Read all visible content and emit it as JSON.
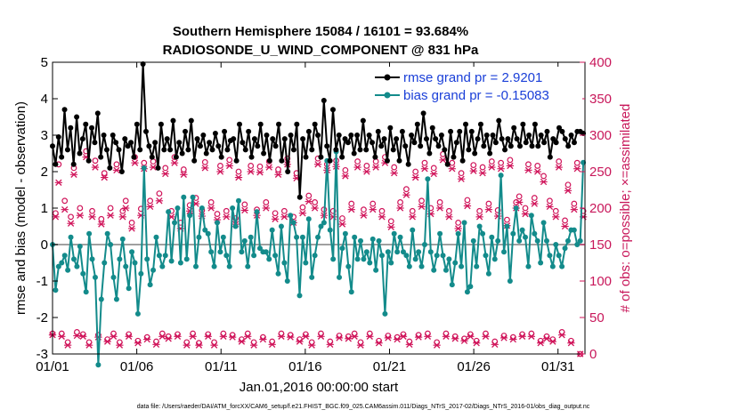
{
  "chart_data": {
    "type": "line",
    "title": "Southern Hemisphere 15084 / 16101 = 93.684%",
    "subtitle": "RADIOSONDE_U_WIND_COMPONENT @ 831 hPa",
    "xlabel": "Jan.01,2016 00:00:00 start",
    "ylabel": "rmse and bias (model - observation)",
    "y2label": "# of obs: o=possible; ×=assimilated",
    "footnote": "data file: /Users/raeder/DAI/ATM_forcXX/CAM6_setup/f.e21.FHIST_BGC.f09_025.CAM6assim.011/Diags_NTrS_2017-02/Diags_NTrS_2016-01/obs_diag_output.nc",
    "xlim": [
      0,
      31.6
    ],
    "ylim": [
      -3,
      5
    ],
    "y2lim": [
      0,
      400
    ],
    "x_ticks": [
      0,
      5,
      10,
      15,
      20,
      25,
      30
    ],
    "x_tick_labels": [
      "01/01",
      "01/06",
      "01/11",
      "01/16",
      "01/21",
      "01/26",
      "01/31"
    ],
    "y_ticks": [
      -3,
      -2,
      -1,
      0,
      1,
      2,
      3,
      4,
      5
    ],
    "y_tick_labels": [
      "-3",
      "-2",
      "-1",
      "0",
      "1",
      "2",
      "3",
      "4",
      "5"
    ],
    "y2_ticks": [
      0,
      50,
      100,
      150,
      200,
      250,
      300,
      350,
      400
    ],
    "y2_tick_labels": [
      "0",
      "50",
      "100",
      "150",
      "200",
      "250",
      "300",
      "350",
      "400"
    ],
    "legend": {
      "position": "top-right",
      "entries": [
        "rmse grand pr = 2.9201",
        "bias grand pr = -0.15083"
      ]
    },
    "colors": {
      "rmse": "#000000",
      "bias": "#138b8b",
      "obs": "#d0145a",
      "zero_line": "#a0a0a0",
      "legend_text": "#1a3fd8"
    },
    "series": [
      {
        "name": "rmse",
        "values": [
          2.7,
          2.2,
          2.95,
          2.4,
          3.7,
          2.6,
          3.2,
          2.2,
          3.5,
          2.5,
          2.9,
          3.3,
          2.3,
          3.2,
          2.8,
          3.6,
          2.4,
          3.0,
          2.6,
          2.1,
          3.0,
          2.8,
          2.6,
          2.0,
          2.9,
          2.7,
          2.8,
          2.4,
          3.3,
          2.6,
          4.95,
          3.1,
          2.7,
          2.4,
          2.8,
          2.1,
          3.3,
          2.6,
          2.9,
          2.6,
          3.4,
          2.4,
          2.8,
          2.5,
          3.1,
          2.6,
          3.4,
          2.3,
          2.9,
          2.7,
          3.0,
          2.5,
          2.8,
          2.6,
          3.05,
          2.7,
          2.4,
          3.1,
          2.6,
          2.85,
          2.9,
          2.3,
          3.3,
          2.8,
          2.6,
          3.1,
          2.4,
          2.9,
          2.7,
          3.3,
          2.5,
          3.0,
          2.3,
          2.9,
          2.7,
          3.3,
          2.3,
          2.9,
          2.0,
          3.0,
          2.6,
          3.3,
          1.3,
          2.9,
          2.4,
          3.1,
          2.6,
          3.3,
          3.0,
          2.4,
          3.95,
          2.7,
          2.3,
          3.7,
          2.6,
          3.0,
          2.4,
          2.9,
          2.8,
          3.0,
          2.5,
          3.0,
          2.6,
          3.4,
          2.6,
          3.0,
          2.8,
          2.4,
          3.1,
          2.7,
          2.9,
          2.3,
          3.2,
          2.6,
          2.9,
          2.3,
          3.1,
          2.7,
          2.2,
          3.0,
          2.8,
          3.3,
          2.7,
          3.6,
          2.9,
          2.5,
          3.2,
          2.9,
          2.7,
          3.0,
          2.6,
          2.2,
          3.1,
          2.4,
          2.8,
          3.1,
          2.3,
          3.3,
          2.6,
          3.1,
          2.5,
          2.9,
          3.3,
          2.7,
          3.0,
          2.5,
          3.0,
          2.8,
          3.4,
          2.9,
          2.6,
          2.9,
          2.7,
          3.2,
          2.9,
          2.7,
          3.3,
          2.8,
          3.0,
          2.7,
          3.3,
          2.7,
          3.0,
          2.8,
          3.1,
          2.4,
          2.9,
          2.8,
          3.2,
          3.1,
          2.9,
          2.7,
          3.0,
          2.8,
          3.1,
          3.1,
          3.05
        ]
      },
      {
        "name": "bias",
        "values": [
          0.0,
          -1.25,
          -0.6,
          -0.5,
          -0.3,
          -0.7,
          0.2,
          -0.4,
          -0.6,
          -0.05,
          -0.8,
          -1.3,
          0.3,
          -0.4,
          -0.9,
          -3.3,
          -1.5,
          -0.5,
          0.3,
          0.0,
          -0.9,
          -1.5,
          -0.4,
          0.15,
          -0.6,
          -1.2,
          -0.2,
          -0.5,
          -1.9,
          -0.8,
          2.1,
          -0.4,
          -1.1,
          -0.7,
          0.2,
          -0.3,
          -0.6,
          -0.3,
          0.9,
          -0.45,
          0.6,
          1.0,
          -0.5,
          1.3,
          -0.4,
          0.8,
          1.3,
          -0.6,
          0.2,
          1.0,
          0.4,
          0.3,
          -0.2,
          -0.6,
          0.6,
          -0.2,
          0.2,
          -0.3,
          -0.6,
          1.0,
          0.5,
          1.2,
          -0.2,
          0.1,
          -0.6,
          0.2,
          -0.3,
          0.9,
          -0.1,
          -0.2,
          -0.2,
          -0.4,
          0.4,
          -0.3,
          -0.8,
          0.5,
          -0.5,
          -1.0,
          0.8,
          0.6,
          0.2,
          -1.4,
          0.2,
          -0.5,
          0.7,
          -0.9,
          -0.3,
          0.2,
          0.5,
          0.6,
          2.3,
          0.4,
          -0.4,
          2.55,
          -0.9,
          -0.1,
          0.3,
          -0.6,
          -1.3,
          0.2,
          -0.4,
          0.1,
          -0.4,
          -0.2,
          -0.5,
          0.15,
          -0.7,
          0.1,
          -0.3,
          -1.9,
          -0.2,
          -0.5,
          0.3,
          -0.2,
          0.2,
          -0.2,
          -0.3,
          -0.6,
          0.4,
          -0.4,
          -0.2,
          -0.6,
          0.0,
          1.8,
          -0.2,
          -0.7,
          -0.3,
          0.3,
          -0.3,
          -0.7,
          -0.4,
          -1.1,
          -0.5,
          0.3,
          -0.6,
          0.6,
          -1.3,
          -1.15,
          0.1,
          -0.6,
          0.5,
          0.3,
          -0.3,
          -0.8,
          0.2,
          -0.4,
          0.1,
          1.9,
          -0.2,
          0.5,
          -1.0,
          0.3,
          1.0,
          0.1,
          0.4,
          0.2,
          -0.6,
          0.8,
          0.3,
          0.1,
          -0.5,
          0.6,
          0.1,
          -0.3,
          -0.6,
          0.0,
          -0.3,
          -0.6,
          -0.1,
          0.1,
          0.4,
          0.4,
          0.0,
          0.1,
          2.25
        ]
      }
    ],
    "obs_possible": {
      "marker": "o",
      "values": [
        28,
        193,
        260,
        28,
        210,
        16,
        188,
        255,
        30,
        200,
        27,
        278,
        16,
        196,
        265,
        26,
        185,
        248,
        20,
        200,
        28,
        260,
        16,
        196,
        210,
        27,
        180,
        270,
        18,
        199,
        262,
        23,
        210,
        264,
        17,
        220,
        28,
        255,
        24,
        196,
        270,
        27,
        180,
        253,
        16,
        204,
        28,
        214,
        15,
        197,
        263,
        27,
        208,
        16,
        192,
        258,
        28,
        196,
        266,
        26,
        186,
        250,
        20,
        205,
        28,
        258,
        16,
        198,
        257,
        23,
        208,
        264,
        17,
        193,
        253,
        28,
        196,
        268,
        26,
        188,
        248,
        20,
        201,
        27,
        217,
        16,
        208,
        268,
        28,
        198,
        260,
        17,
        196,
        265,
        25,
        186,
        252,
        24,
        206,
        28,
        264,
        16,
        198,
        258,
        28,
        206,
        264,
        18,
        196,
        270,
        25,
        182,
        256,
        23,
        208,
        27,
        226,
        17,
        196,
        250,
        26,
        210,
        262,
        28,
        200,
        255,
        16,
        208,
        274,
        28,
        196,
        262,
        24,
        180,
        248,
        21,
        211,
        27,
        259,
        18,
        196,
        256,
        28,
        206,
        264,
        17,
        197,
        262,
        25,
        184,
        266,
        23,
        208,
        216,
        27,
        200,
        260,
        28,
        214,
        258,
        18,
        244,
        24,
        210,
        20,
        196,
        264,
        30,
        183,
        232,
        18,
        206,
        262,
        0,
        196
      ]
    },
    "obs_assimilated": {
      "marker": "x",
      "values": [
        26,
        188,
        235,
        24,
        198,
        12,
        179,
        246,
        25,
        190,
        24,
        270,
        12,
        188,
        256,
        23,
        178,
        242,
        17,
        190,
        24,
        252,
        12,
        188,
        200,
        24,
        172,
        262,
        15,
        190,
        254,
        20,
        202,
        256,
        13,
        210,
        24,
        247,
        21,
        188,
        262,
        24,
        172,
        246,
        12,
        196,
        24,
        206,
        12,
        189,
        255,
        24,
        200,
        12,
        184,
        250,
        24,
        188,
        258,
        23,
        178,
        242,
        17,
        197,
        24,
        250,
        12,
        190,
        249,
        20,
        200,
        256,
        13,
        185,
        246,
        24,
        188,
        260,
        23,
        180,
        241,
        17,
        193,
        24,
        209,
        12,
        200,
        260,
        24,
        190,
        252,
        13,
        188,
        257,
        22,
        178,
        244,
        21,
        198,
        24,
        256,
        12,
        190,
        250,
        24,
        198,
        256,
        15,
        188,
        262,
        22,
        174,
        248,
        20,
        200,
        24,
        218,
        13,
        188,
        242,
        23,
        202,
        254,
        24,
        192,
        247,
        12,
        200,
        266,
        24,
        188,
        254,
        21,
        172,
        240,
        18,
        203,
        24,
        251,
        15,
        188,
        248,
        24,
        198,
        256,
        13,
        189,
        254,
        22,
        176,
        258,
        20,
        200,
        208,
        24,
        192,
        252,
        24,
        206,
        250,
        15,
        236,
        21,
        202,
        17,
        188,
        256,
        26,
        175,
        224,
        15,
        198,
        254,
        0,
        188
      ]
    }
  }
}
